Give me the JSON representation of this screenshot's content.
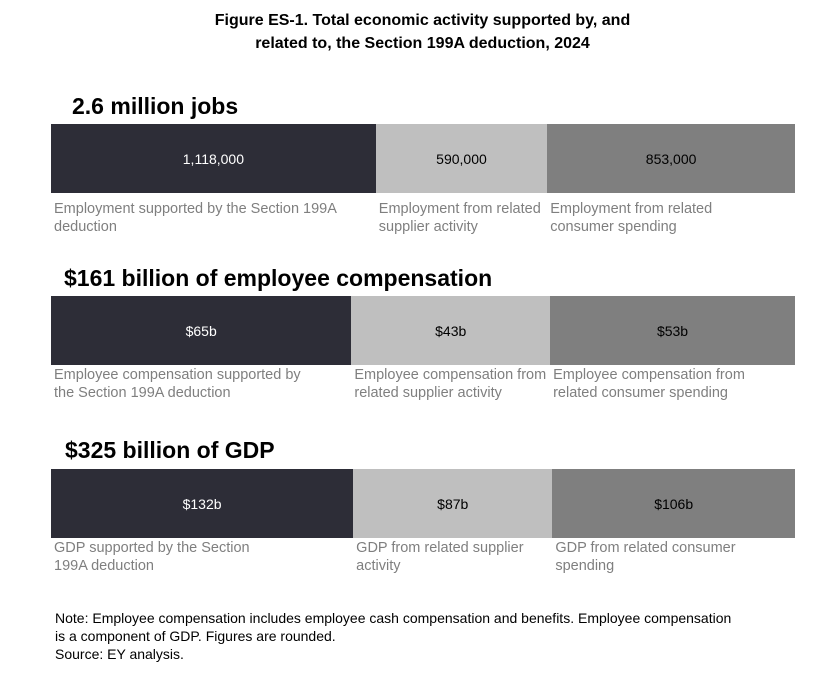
{
  "figure": {
    "title_line1": "Figure ES-1. Total economic activity supported by, and",
    "title_line2": "related to, the Section 199A deduction, 2024"
  },
  "colors": {
    "direct": "#2d2d37",
    "supplier": "#bfbfbf",
    "consumer": "#7f7f7f",
    "label_text": "#7f7f7f"
  },
  "chart_data": [
    {
      "type": "bar",
      "orientation": "horizontal-stacked",
      "title": "2.6 million jobs",
      "categories": [
        "Employment supported by the Section 199A deduction",
        "Employment from related supplier activity",
        "Employment from related consumer spending"
      ],
      "values": [
        1118000,
        590000,
        853000
      ],
      "value_labels": [
        "1,118,000",
        "590,000",
        "853,000"
      ],
      "label_lines": [
        [
          "Employment supported by the Section 199A",
          "deduction"
        ],
        [
          "Employment from related",
          "supplier activity"
        ],
        [
          "Employment from related",
          "consumer spending"
        ]
      ]
    },
    {
      "type": "bar",
      "orientation": "horizontal-stacked",
      "title": "$161 billion of employee compensation",
      "categories": [
        "Employee compensation supported by the Section 199A deduction",
        "Employee compensation from related supplier activity",
        "Employee compensation from related consumer spending"
      ],
      "values": [
        65,
        43,
        53
      ],
      "value_labels": [
        "$65b",
        "$43b",
        "$53b"
      ],
      "label_lines": [
        [
          "Employee compensation supported by",
          "the Section 199A deduction"
        ],
        [
          "Employee compensation from",
          "related supplier activity"
        ],
        [
          "Employee compensation from",
          "related consumer spending"
        ]
      ]
    },
    {
      "type": "bar",
      "orientation": "horizontal-stacked",
      "title": "$325 billion of GDP",
      "categories": [
        "GDP supported by the Section 199A deduction",
        "GDP from related supplier activity",
        "GDP from related consumer spending"
      ],
      "values": [
        132,
        87,
        106
      ],
      "value_labels": [
        "$132b",
        "$87b",
        "$106b"
      ],
      "label_lines": [
        [
          "GDP supported by the Section",
          "199A deduction"
        ],
        [
          "GDP from related supplier",
          "activity"
        ],
        [
          "GDP from related consumer",
          "spending"
        ]
      ]
    }
  ],
  "note": {
    "line1": "Note: Employee compensation includes employee cash compensation and benefits. Employee compensation",
    "line2": "is a component of GDP. Figures are rounded.",
    "line3": "Source: EY analysis."
  }
}
